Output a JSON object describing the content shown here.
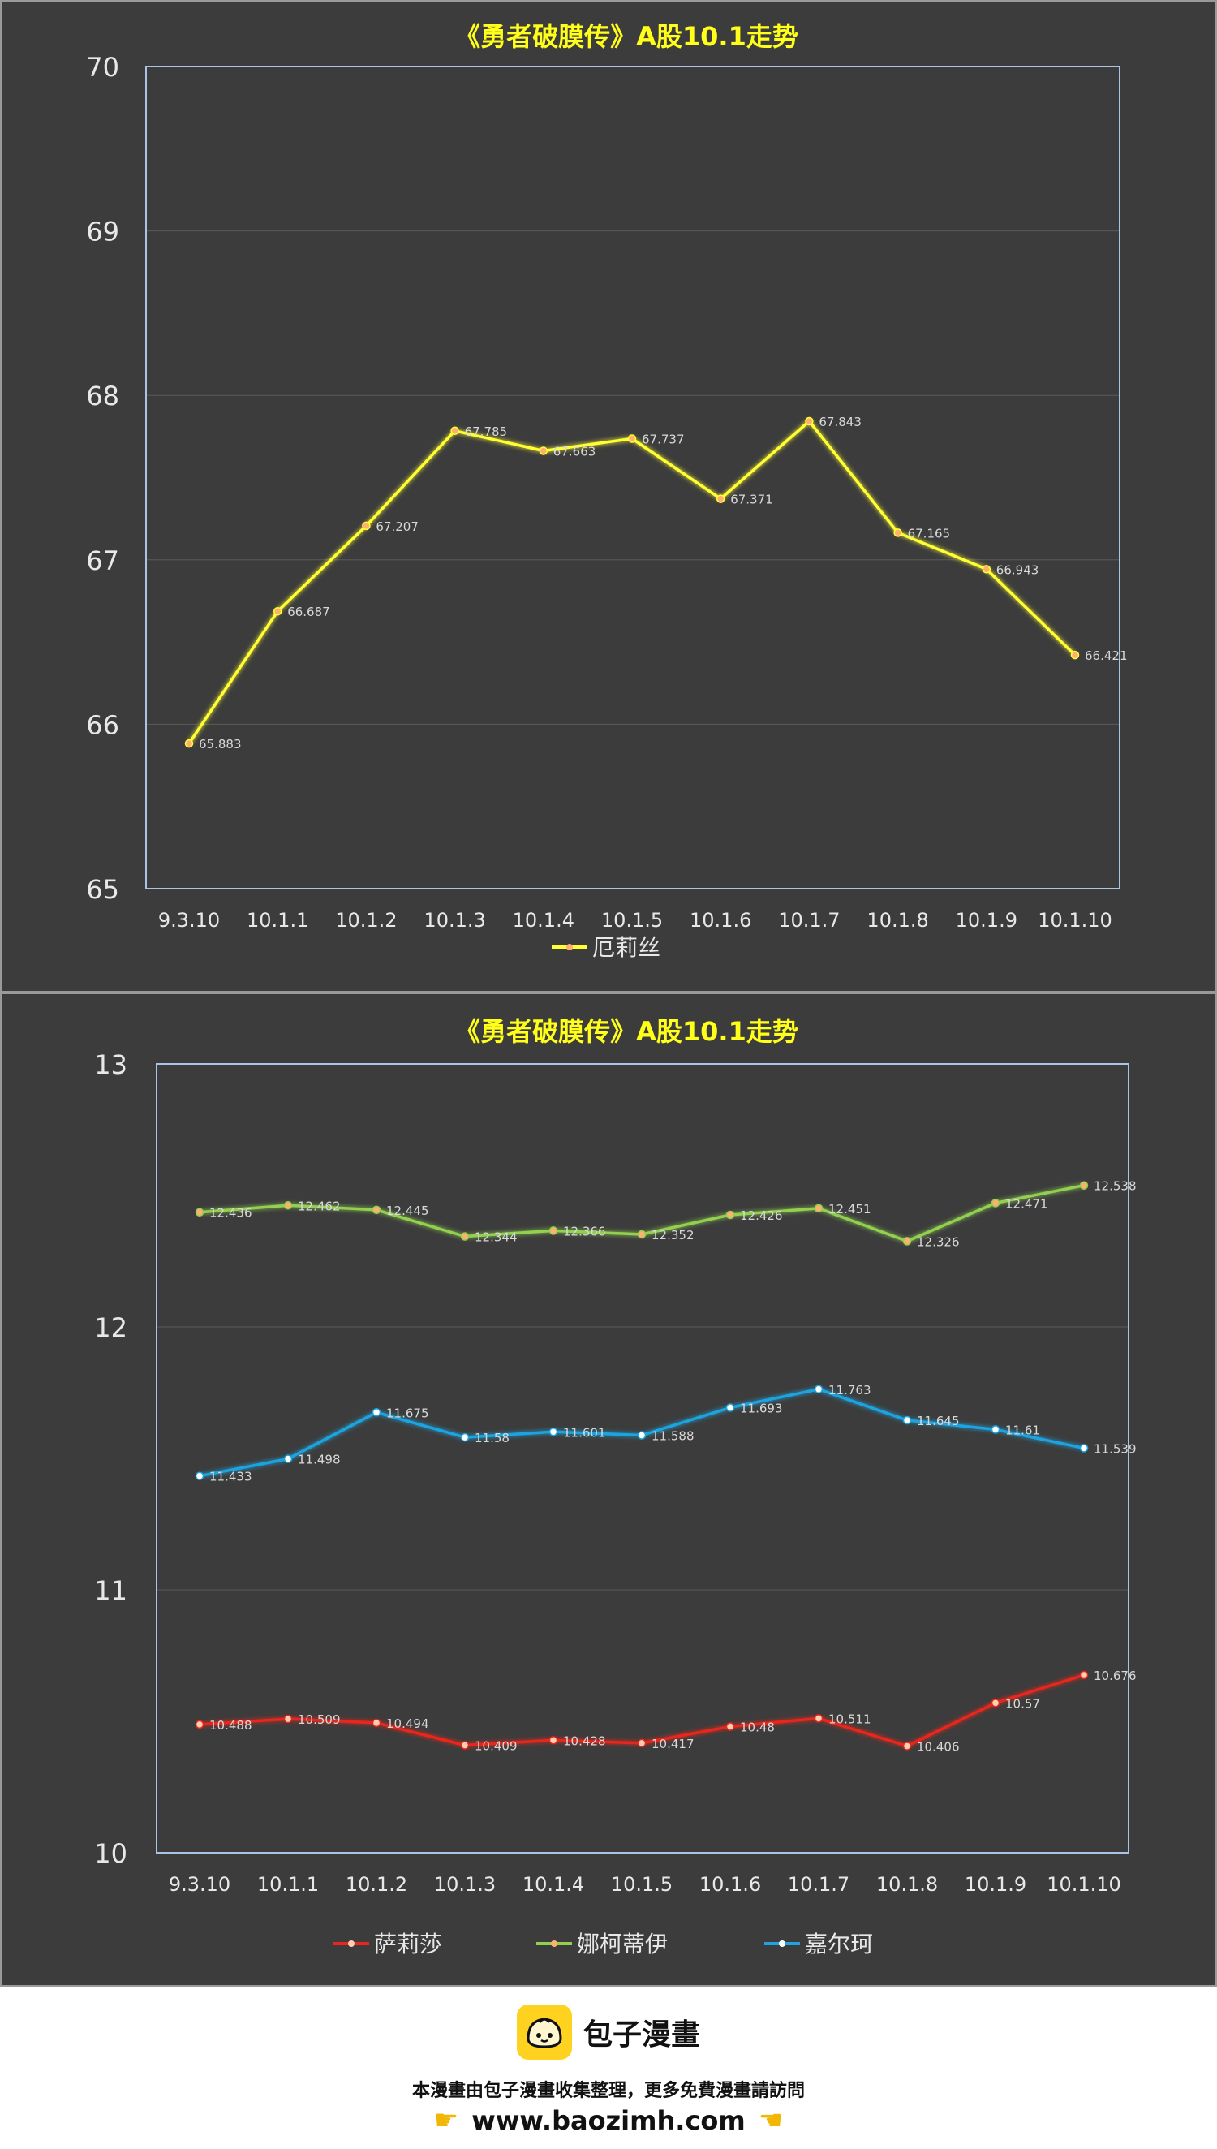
{
  "charts": [
    {
      "chart_data": {
        "type": "line",
        "title": "《勇者破膜传》A股10.1走势",
        "categories": [
          "9.3.10",
          "10.1.1",
          "10.1.2",
          "10.1.3",
          "10.1.4",
          "10.1.5",
          "10.1.6",
          "10.1.7",
          "10.1.8",
          "10.1.9",
          "10.1.10"
        ],
        "ylim": [
          65,
          70
        ],
        "yticks": [
          65,
          66,
          67,
          68,
          69,
          70
        ],
        "grid": true,
        "legend_position": "bottom",
        "series": [
          {
            "name": "厄莉丝",
            "color": "#ffff33",
            "values": [
              65.883,
              66.687,
              67.207,
              67.785,
              67.663,
              67.737,
              67.371,
              67.843,
              67.165,
              66.943,
              66.421
            ]
          }
        ]
      }
    },
    {
      "chart_data": {
        "type": "line",
        "title": "《勇者破膜传》A股10.1走势",
        "categories": [
          "9.3.10",
          "10.1.1",
          "10.1.2",
          "10.1.3",
          "10.1.4",
          "10.1.5",
          "10.1.6",
          "10.1.7",
          "10.1.8",
          "10.1.9",
          "10.1.10"
        ],
        "ylim": [
          10,
          13
        ],
        "yticks": [
          10,
          11,
          12,
          13
        ],
        "grid": true,
        "legend_position": "bottom",
        "series": [
          {
            "name": "萨莉莎",
            "color": "#e8261e",
            "values": [
              10.488,
              10.509,
              10.494,
              10.409,
              10.428,
              10.417,
              10.48,
              10.511,
              10.406,
              10.57,
              10.676
            ]
          },
          {
            "name": "娜柯蒂伊",
            "color": "#92d050",
            "values": [
              12.436,
              12.462,
              12.445,
              12.344,
              12.366,
              12.352,
              12.426,
              12.451,
              12.326,
              12.471,
              12.538
            ]
          },
          {
            "name": "嘉尔珂",
            "color": "#1fa4e0",
            "values": [
              11.433,
              11.498,
              11.675,
              11.58,
              11.601,
              11.588,
              11.693,
              11.763,
              11.645,
              11.61,
              11.539
            ]
          }
        ]
      }
    }
  ],
  "footer": {
    "brand": "包子漫畫",
    "notice": "本漫畫由包子漫畫收集整理，更多免費漫畫請訪問",
    "url": "www.baozimh.com"
  }
}
